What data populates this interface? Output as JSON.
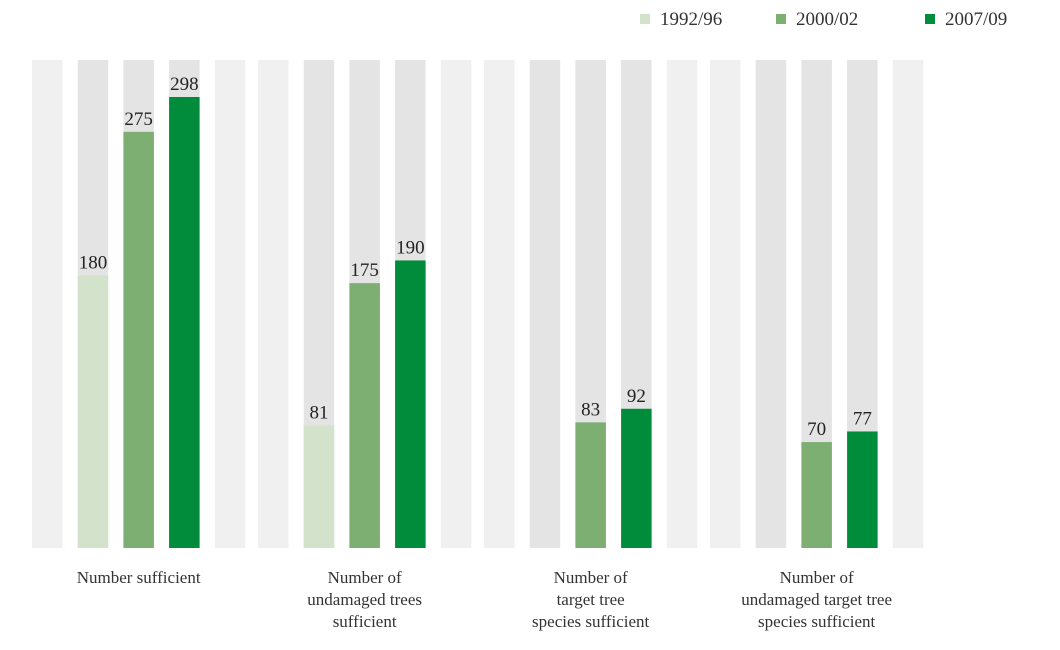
{
  "chart_data": {
    "type": "bar",
    "categories": [
      [
        "Number sufficient"
      ],
      [
        "Number of",
        "undamaged trees",
        "sufficient"
      ],
      [
        "Number of",
        "target tree",
        "species sufficient"
      ],
      [
        "Number of",
        "undamaged target tree",
        "species sufficient"
      ]
    ],
    "series": [
      {
        "name": "1992/96",
        "values": [
          180,
          81,
          null,
          null
        ]
      },
      {
        "name": "2000/02",
        "values": [
          275,
          175,
          83,
          70
        ]
      },
      {
        "name": "2007/09",
        "values": [
          298,
          190,
          92,
          77
        ]
      }
    ],
    "ylim": [
      0,
      320
    ],
    "grid": false,
    "legend": "top-right",
    "colors": {
      "series": [
        "#d3e2cb",
        "#7caf71",
        "#008c3a"
      ],
      "background_band_light": "#f0f0f0",
      "background_band_dark": "#e4e4e4"
    }
  }
}
